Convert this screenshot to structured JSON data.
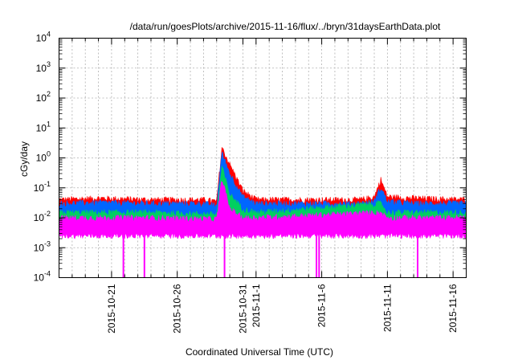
{
  "chart_data": {
    "type": "line",
    "title": "/data/run/goesPlots/archive/2015-11-16/flux/../bryn/31daysEarthData.plot",
    "xlabel": "Coordinated Universal Time (UTC)",
    "ylabel": "cGy/day",
    "yscale": "log",
    "ylim": [
      0.0001,
      10000
    ],
    "xlim": [
      "2015-10-17",
      "2015-11-17"
    ],
    "grid": true,
    "y_ticks": [
      {
        "value": 0.0001,
        "base": "10",
        "exp": "-4"
      },
      {
        "value": 0.001,
        "base": "10",
        "exp": "-3"
      },
      {
        "value": 0.01,
        "base": "10",
        "exp": "-2"
      },
      {
        "value": 0.1,
        "base": "10",
        "exp": "-1"
      },
      {
        "value": 1,
        "base": "10",
        "exp": "0"
      },
      {
        "value": 10,
        "base": "10",
        "exp": "1"
      },
      {
        "value": 100,
        "base": "10",
        "exp": "2"
      },
      {
        "value": 1000,
        "base": "10",
        "exp": "3"
      },
      {
        "value": 10000,
        "base": "10",
        "exp": "4"
      }
    ],
    "x_ticks": [
      "2015-10-21",
      "2015-10-26",
      "2015-10-31",
      "2015-11-1",
      "2015-11-6",
      "2015-11-11",
      "2015-11-16"
    ],
    "series": [
      {
        "color": "#ff0000",
        "x": [
          "2015-10-17",
          "2015-10-20",
          "2015-10-24",
          "2015-10-28",
          "2015-10-29",
          "2015-10-29.4",
          "2015-10-30",
          "2015-10-31",
          "2015-11-1",
          "2015-11-5",
          "2015-11-9",
          "2015-11-10",
          "2015-11-10.5",
          "2015-11-11",
          "2015-11-13",
          "2015-11-17"
        ],
        "values": [
          0.04,
          0.045,
          0.04,
          0.04,
          0.035,
          2.2,
          0.6,
          0.08,
          0.04,
          0.04,
          0.04,
          0.05,
          0.19,
          0.05,
          0.045,
          0.04
        ]
      },
      {
        "color": "#0066ff",
        "x": [
          "2015-10-17",
          "2015-10-20",
          "2015-10-24",
          "2015-10-28",
          "2015-10-29",
          "2015-10-29.4",
          "2015-10-30",
          "2015-10-31",
          "2015-11-1",
          "2015-11-5",
          "2015-11-9",
          "2015-11-10",
          "2015-11-10.5",
          "2015-11-11",
          "2015-11-13",
          "2015-11-17"
        ],
        "values": [
          0.03,
          0.032,
          0.03,
          0.03,
          0.025,
          1.5,
          0.3,
          0.05,
          0.03,
          0.03,
          0.03,
          0.035,
          0.1,
          0.035,
          0.03,
          0.03
        ]
      },
      {
        "color": "#00d060",
        "x": [
          "2015-10-17",
          "2015-10-24",
          "2015-10-29",
          "2015-10-29.4",
          "2015-10-30",
          "2015-10-31",
          "2015-11-1",
          "2015-11-10.5",
          "2015-11-11",
          "2015-11-17"
        ],
        "values": [
          0.015,
          0.015,
          0.013,
          0.5,
          0.06,
          0.02,
          0.015,
          0.03,
          0.015,
          0.015
        ]
      },
      {
        "color": "#ff00ff",
        "x": [
          "2015-10-17",
          "2015-10-24",
          "2015-10-29",
          "2015-10-29.4",
          "2015-10-30",
          "2015-10-31",
          "2015-11-1",
          "2015-11-10.5",
          "2015-11-11",
          "2015-11-17"
        ],
        "values": [
          0.01,
          0.01,
          0.009,
          0.2,
          0.02,
          0.01,
          0.01,
          0.015,
          0.01,
          0.01
        ],
        "dropouts": [
          "2015-10-21.9",
          "2015-10-23.5",
          "2015-10-29.6",
          "2015-11-5.6",
          "2015-11-5.8",
          "2015-11-13.3"
        ]
      }
    ]
  }
}
